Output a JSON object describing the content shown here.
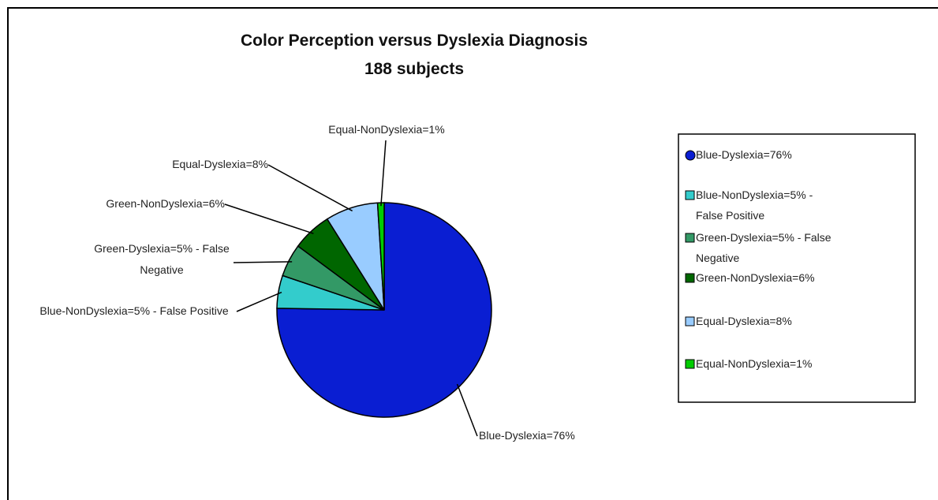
{
  "chart_data": {
    "type": "pie",
    "title": "Color Perception versus Dyslexia Diagnosis",
    "subtitle": "188 subjects",
    "categories": [
      "Blue-Dyslexia=76%",
      "Blue-NonDyslexia=5% - False Positive",
      "Green-Dyslexia=5% - False Negative",
      "Green-NonDyslexia=6%",
      "Equal-Dyslexia=8%",
      "Equal-NonDyslexia=1%"
    ],
    "values": [
      76,
      5,
      5,
      6,
      8,
      1
    ],
    "colors": [
      "#0a1ed2",
      "#33cccc",
      "#339966",
      "#006600",
      "#99ccff",
      "#00cc00"
    ],
    "legend": "right"
  }
}
